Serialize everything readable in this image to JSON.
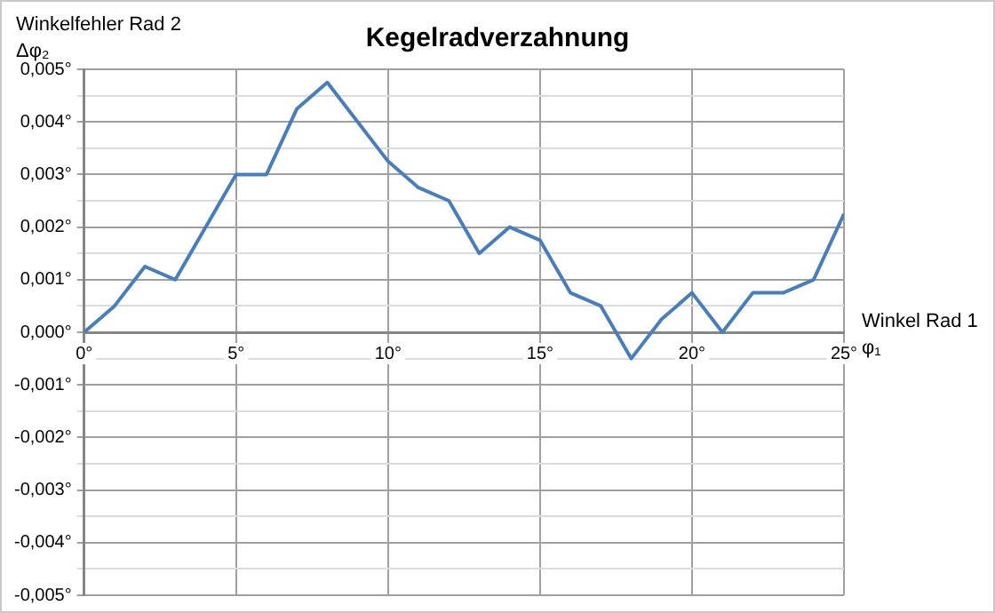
{
  "chart_data": {
    "type": "line",
    "title": "Kegelradverzahnung",
    "xlabel": "Winkel Rad 1 φ₁",
    "ylabel": "Winkelfehler Rad 2 Δφ₂",
    "x": [
      0,
      1,
      2,
      3,
      4,
      5,
      6,
      7,
      8,
      9,
      10,
      11,
      12,
      13,
      14,
      15,
      16,
      17,
      18,
      19,
      20,
      21,
      22,
      23,
      24,
      25
    ],
    "series": [
      {
        "color": "#4a7ebb",
        "values": [
          0,
          0.0005,
          0.00125,
          0.001,
          0.002,
          0.003,
          0.003,
          0.00425,
          0.00475,
          0.004,
          0.00325,
          0.00275,
          0.0025,
          0.0015,
          0.002,
          0.00175,
          0.00075,
          0.0005,
          -0.0005,
          0.00025,
          0.00075,
          0,
          0.00075,
          0.00075,
          0.001,
          0.00225
        ]
      }
    ],
    "xlim": [
      0,
      25
    ],
    "xticks": [
      {
        "value": 0,
        "label": "0°"
      },
      {
        "value": 5,
        "label": "5°"
      },
      {
        "value": 10,
        "label": "10°"
      },
      {
        "value": 15,
        "label": "15°"
      },
      {
        "value": 20,
        "label": "20°"
      },
      {
        "value": 25,
        "label": "25°"
      }
    ],
    "ylim": [
      -0.005,
      0.005
    ],
    "yticks": [
      {
        "value": -0.005,
        "label": "-0,005°"
      },
      {
        "value": -0.0045,
        "label": null
      },
      {
        "value": -0.004,
        "label": "-0,004°"
      },
      {
        "value": -0.0035,
        "label": null
      },
      {
        "value": -0.003,
        "label": "-0,003°"
      },
      {
        "value": -0.0025,
        "label": null
      },
      {
        "value": -0.002,
        "label": "-0,002°"
      },
      {
        "value": -0.0015,
        "label": null
      },
      {
        "value": -0.001,
        "label": "-0,001°"
      },
      {
        "value": -0.0005,
        "label": null
      },
      {
        "value": 0,
        "label": "0,000°"
      },
      {
        "value": 0.0005,
        "label": null
      },
      {
        "value": 0.001,
        "label": "0,001°"
      },
      {
        "value": 0.0015,
        "label": null
      },
      {
        "value": 0.002,
        "label": "0,002°"
      },
      {
        "value": 0.0025,
        "label": null
      },
      {
        "value": 0.003,
        "label": "0,003°"
      },
      {
        "value": 0.0035,
        "label": null
      },
      {
        "value": 0.004,
        "label": "0,004°"
      },
      {
        "value": 0.0045,
        "label": null
      },
      {
        "value": 0.005,
        "label": "0,005°"
      }
    ],
    "grid": true,
    "marker": "none",
    "line_style": "solid"
  }
}
